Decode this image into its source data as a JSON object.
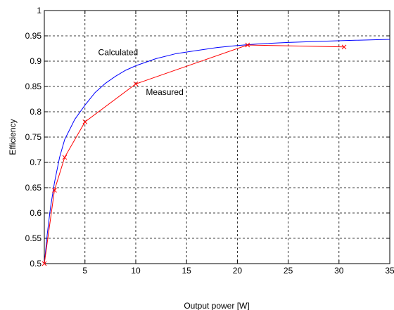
{
  "chart_data": {
    "type": "line",
    "title": "",
    "xlabel": "Output power [W]",
    "ylabel": "Efficiency",
    "xlim": [
      1,
      35
    ],
    "ylim": [
      0.5,
      1
    ],
    "xticks": [
      5,
      10,
      15,
      20,
      25,
      30,
      35
    ],
    "yticks": [
      0.5,
      0.55,
      0.6,
      0.65,
      0.7,
      0.75,
      0.8,
      0.85,
      0.9,
      0.95,
      1
    ],
    "ytick_labels": [
      "0.5",
      "0.55",
      "0.6",
      "0.65",
      "0.7",
      "0.75",
      "0.8",
      "0.85",
      "0.9",
      "0.95",
      "1"
    ],
    "grid": true,
    "series": [
      {
        "name": "Calculated",
        "color": "#0000ff",
        "marker": "none",
        "x": [
          1.0,
          1.3,
          1.6,
          2.0,
          2.5,
          3.0,
          4.0,
          5.0,
          6.0,
          7.0,
          8.0,
          9.0,
          10.0,
          12.0,
          14.0,
          16.0,
          18.0,
          20.0,
          22.0,
          25.0,
          28.0,
          31.0,
          35.0
        ],
        "y": [
          0.5,
          0.56,
          0.61,
          0.66,
          0.71,
          0.745,
          0.785,
          0.813,
          0.838,
          0.856,
          0.87,
          0.882,
          0.891,
          0.905,
          0.915,
          0.921,
          0.927,
          0.931,
          0.934,
          0.937,
          0.939,
          0.941,
          0.943
        ]
      },
      {
        "name": "Measured",
        "color": "#ff0000",
        "marker": "x",
        "x": [
          1.0,
          2.0,
          3.0,
          5.0,
          10.0,
          21.0,
          30.5
        ],
        "y": [
          0.5,
          0.645,
          0.71,
          0.78,
          0.855,
          0.932,
          0.928
        ]
      }
    ],
    "annotations": [
      {
        "text": "Calculated",
        "x": 6.3,
        "y": 0.912
      },
      {
        "text": "Measured",
        "x": 11.0,
        "y": 0.833
      }
    ]
  }
}
